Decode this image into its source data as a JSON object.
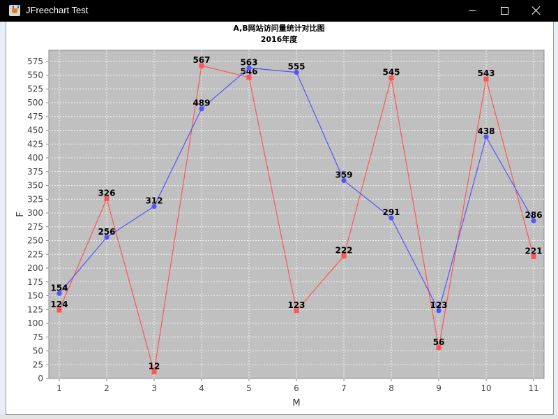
{
  "window": {
    "title": "JFreechart Test"
  },
  "chart_data": {
    "type": "line",
    "title": "A,B网站访问量统计对比图",
    "subtitle": "2016年度",
    "xlabel": "M",
    "ylabel": "F",
    "x": [
      1,
      2,
      3,
      4,
      5,
      6,
      7,
      8,
      9,
      10,
      11
    ],
    "ylim": [
      0,
      595
    ],
    "ytick_step": 25,
    "grid": true,
    "series": [
      {
        "color": "#ff5555",
        "marker": "square",
        "values": [
          124,
          326,
          12,
          567,
          546,
          123,
          222,
          545,
          56,
          543,
          221
        ]
      },
      {
        "color": "#5555ff",
        "marker": "circle",
        "values": [
          154,
          256,
          312,
          489,
          563,
          555,
          359,
          291,
          123,
          438,
          286
        ]
      }
    ],
    "plot_background": "#c0c0c0"
  }
}
